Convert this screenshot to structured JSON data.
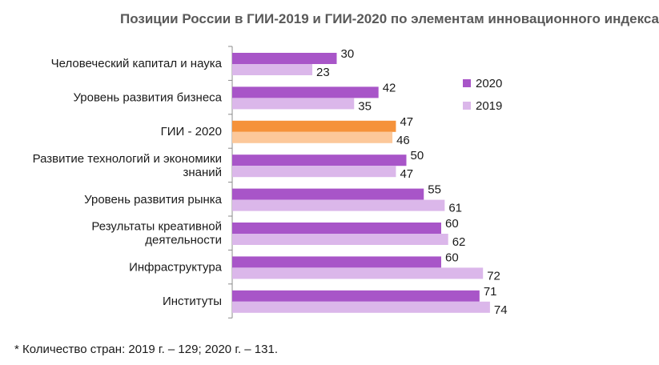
{
  "chart_data": {
    "type": "bar",
    "orientation": "horizontal",
    "title": "Позиции России в ГИИ-2019 и ГИИ-2020 по элементам инновационного индекса",
    "categories": [
      [
        "Человеческий капитал и наука"
      ],
      [
        "Уровень развития бизнеса"
      ],
      [
        "ГИИ - 2020"
      ],
      [
        "Развитие технологий и экономики",
        "знаний"
      ],
      [
        "Уровень развития рынка"
      ],
      [
        "Результаты креативной",
        "деятельности"
      ],
      [
        "Инфраструктура"
      ],
      [
        "Институты"
      ]
    ],
    "series": [
      {
        "name": "2020",
        "values": [
          30,
          42,
          47,
          50,
          55,
          60,
          60,
          71
        ],
        "color": "#a855c8"
      },
      {
        "name": "2019",
        "values": [
          23,
          35,
          46,
          47,
          61,
          62,
          72,
          74
        ],
        "color": "#dbb7ea"
      }
    ],
    "highlight": {
      "category_index": 2,
      "colors": {
        "2020": "#f5923a",
        "2019": "#fcc89a"
      }
    },
    "xlim": [
      0,
      80
    ],
    "grid": false,
    "legend_position": "right"
  },
  "footnote": "* Количество стран: 2019 г. – 129; 2020 г. – 131."
}
